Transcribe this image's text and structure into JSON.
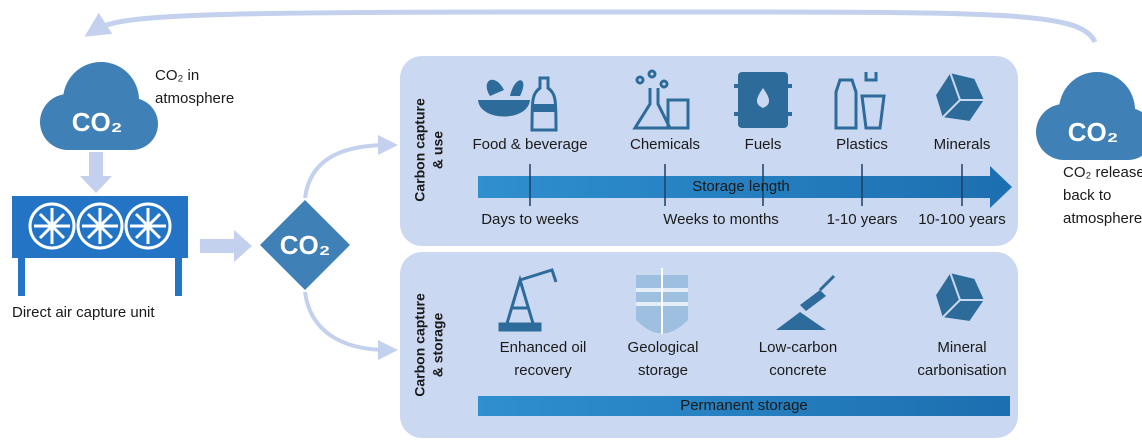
{
  "atmosphere": {
    "cloud": "CO₂",
    "label_lines": [
      "CO₂ in",
      "atmosphere"
    ]
  },
  "dac": {
    "label": "Direct air capture unit"
  },
  "hub": {
    "label": "CO₂"
  },
  "released": {
    "cloud": "CO₂",
    "label_lines": [
      "CO₂ released",
      "back to",
      "atmosphere"
    ]
  },
  "use": {
    "title_lines": [
      "Carbon capture",
      "& use"
    ],
    "items": [
      "Food & beverage",
      "Chemicals",
      "Fuels",
      "Plastics",
      "Minerals"
    ],
    "arrow_label": "Storage length",
    "durations": [
      "Days to weeks",
      "Weeks to months",
      "1-10 years",
      "10-100 years"
    ]
  },
  "storage": {
    "title_lines": [
      "Carbon capture",
      "& storage"
    ],
    "items": [
      [
        "Enhanced oil",
        "recovery"
      ],
      [
        "Geological",
        "storage"
      ],
      [
        "Low-carbon",
        "concrete"
      ],
      [
        "Mineral",
        "carbonisation"
      ]
    ],
    "bar_label": "Permanent storage"
  }
}
